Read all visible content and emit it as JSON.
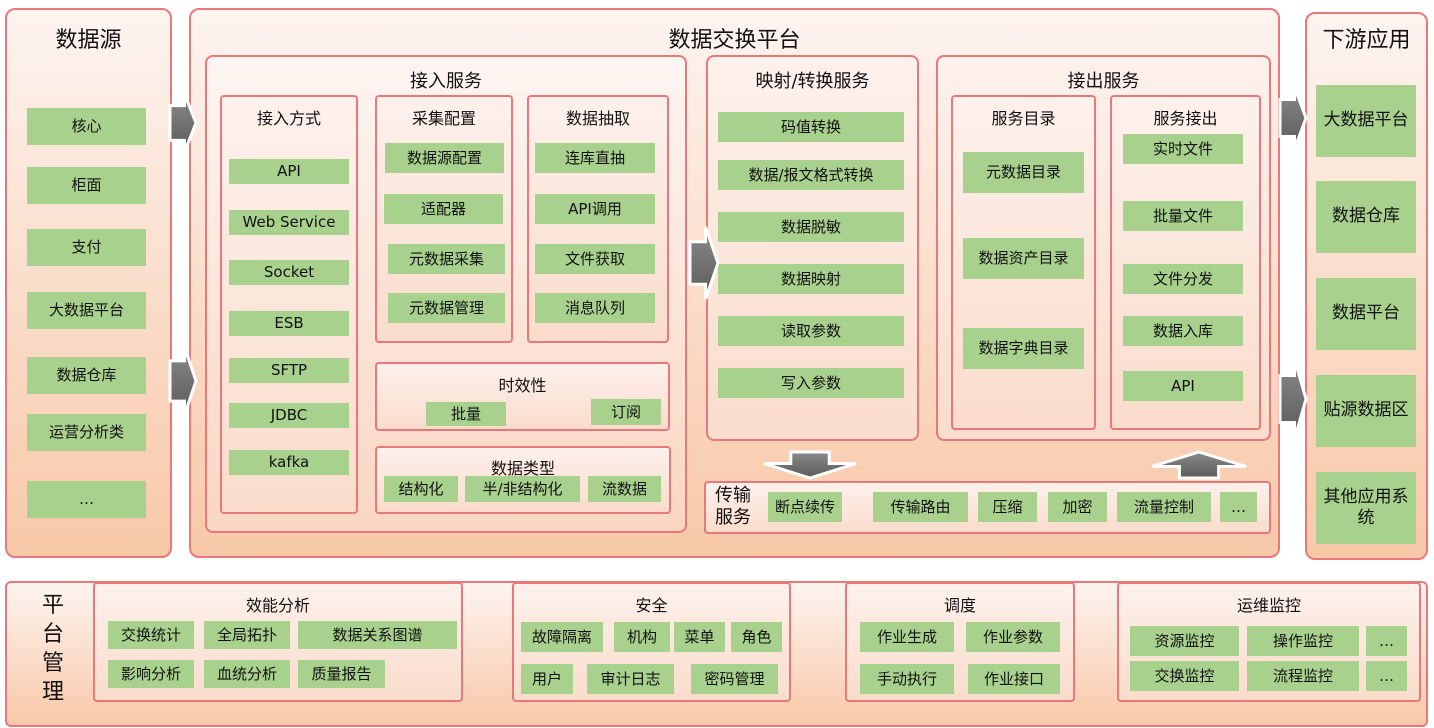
{
  "colors": {
    "border": "#E9787A",
    "box": "#A9D18E",
    "arrow": "#6B6B6B"
  },
  "source": {
    "title": "数据源",
    "items": [
      "核心",
      "柜面",
      "支付",
      "大数据平台",
      "数据仓库",
      "运营分析类",
      "…"
    ]
  },
  "platform": {
    "title": "数据交换平台",
    "ingest": {
      "title": "接入服务",
      "methods": {
        "title": "接入方式",
        "items": [
          "API",
          "Web Service",
          "Socket",
          "ESB",
          "SFTP",
          "JDBC",
          "kafka"
        ]
      },
      "collect": {
        "title": "采集配置",
        "items": [
          "数据源配置",
          "适配器",
          "元数据采集",
          "元数据管理"
        ]
      },
      "extract": {
        "title": "数据抽取",
        "items": [
          "连库直抽",
          "API调用",
          "文件获取",
          "消息队列"
        ]
      },
      "timeliness": {
        "title": "时效性",
        "items": [
          "批量",
          "订阅"
        ]
      },
      "datatype": {
        "title": "数据类型",
        "items": [
          "结构化",
          "半/非结构化",
          "流数据"
        ]
      }
    },
    "mapping": {
      "title": "映射/转换服务",
      "items": [
        "码值转换",
        "数据/报文格式转换",
        "数据脱敏",
        "数据映射",
        "读取参数",
        "写入参数"
      ]
    },
    "egress": {
      "title": "接出服务",
      "catalog": {
        "title": "服务目录",
        "items": [
          "元数据目录",
          "数据资产目录",
          "数据字典目录"
        ]
      },
      "out": {
        "title": "服务接出",
        "items": [
          "实时文件",
          "批量文件",
          "文件分发",
          "数据入库",
          "API"
        ]
      }
    },
    "transport": {
      "title": "传输服务",
      "items": [
        "断点续传",
        "传输路由",
        "压缩",
        "加密",
        "流量控制",
        "…"
      ]
    }
  },
  "downstream": {
    "title": "下游应用",
    "items": [
      "大数据平台",
      "数据仓库",
      "数据平台",
      "贴源数据区",
      "其他应用系统"
    ]
  },
  "management": {
    "title": "平台管理",
    "perf": {
      "title": "效能分析",
      "items": [
        "交换统计",
        "全局拓扑",
        "数据关系图谱",
        "影响分析",
        "血统分析",
        "质量报告"
      ]
    },
    "security": {
      "title": "安全",
      "items": [
        "故障隔离",
        "机构",
        "菜单",
        "角色",
        "用户",
        "审计日志",
        "密码管理"
      ]
    },
    "schedule": {
      "title": "调度",
      "items": [
        "作业生成",
        "作业参数",
        "手动执行",
        "作业接口"
      ]
    },
    "ops": {
      "title": "运维监控",
      "items": [
        "资源监控",
        "操作监控",
        "…",
        "交换监控",
        "流程监控",
        "…"
      ]
    }
  }
}
